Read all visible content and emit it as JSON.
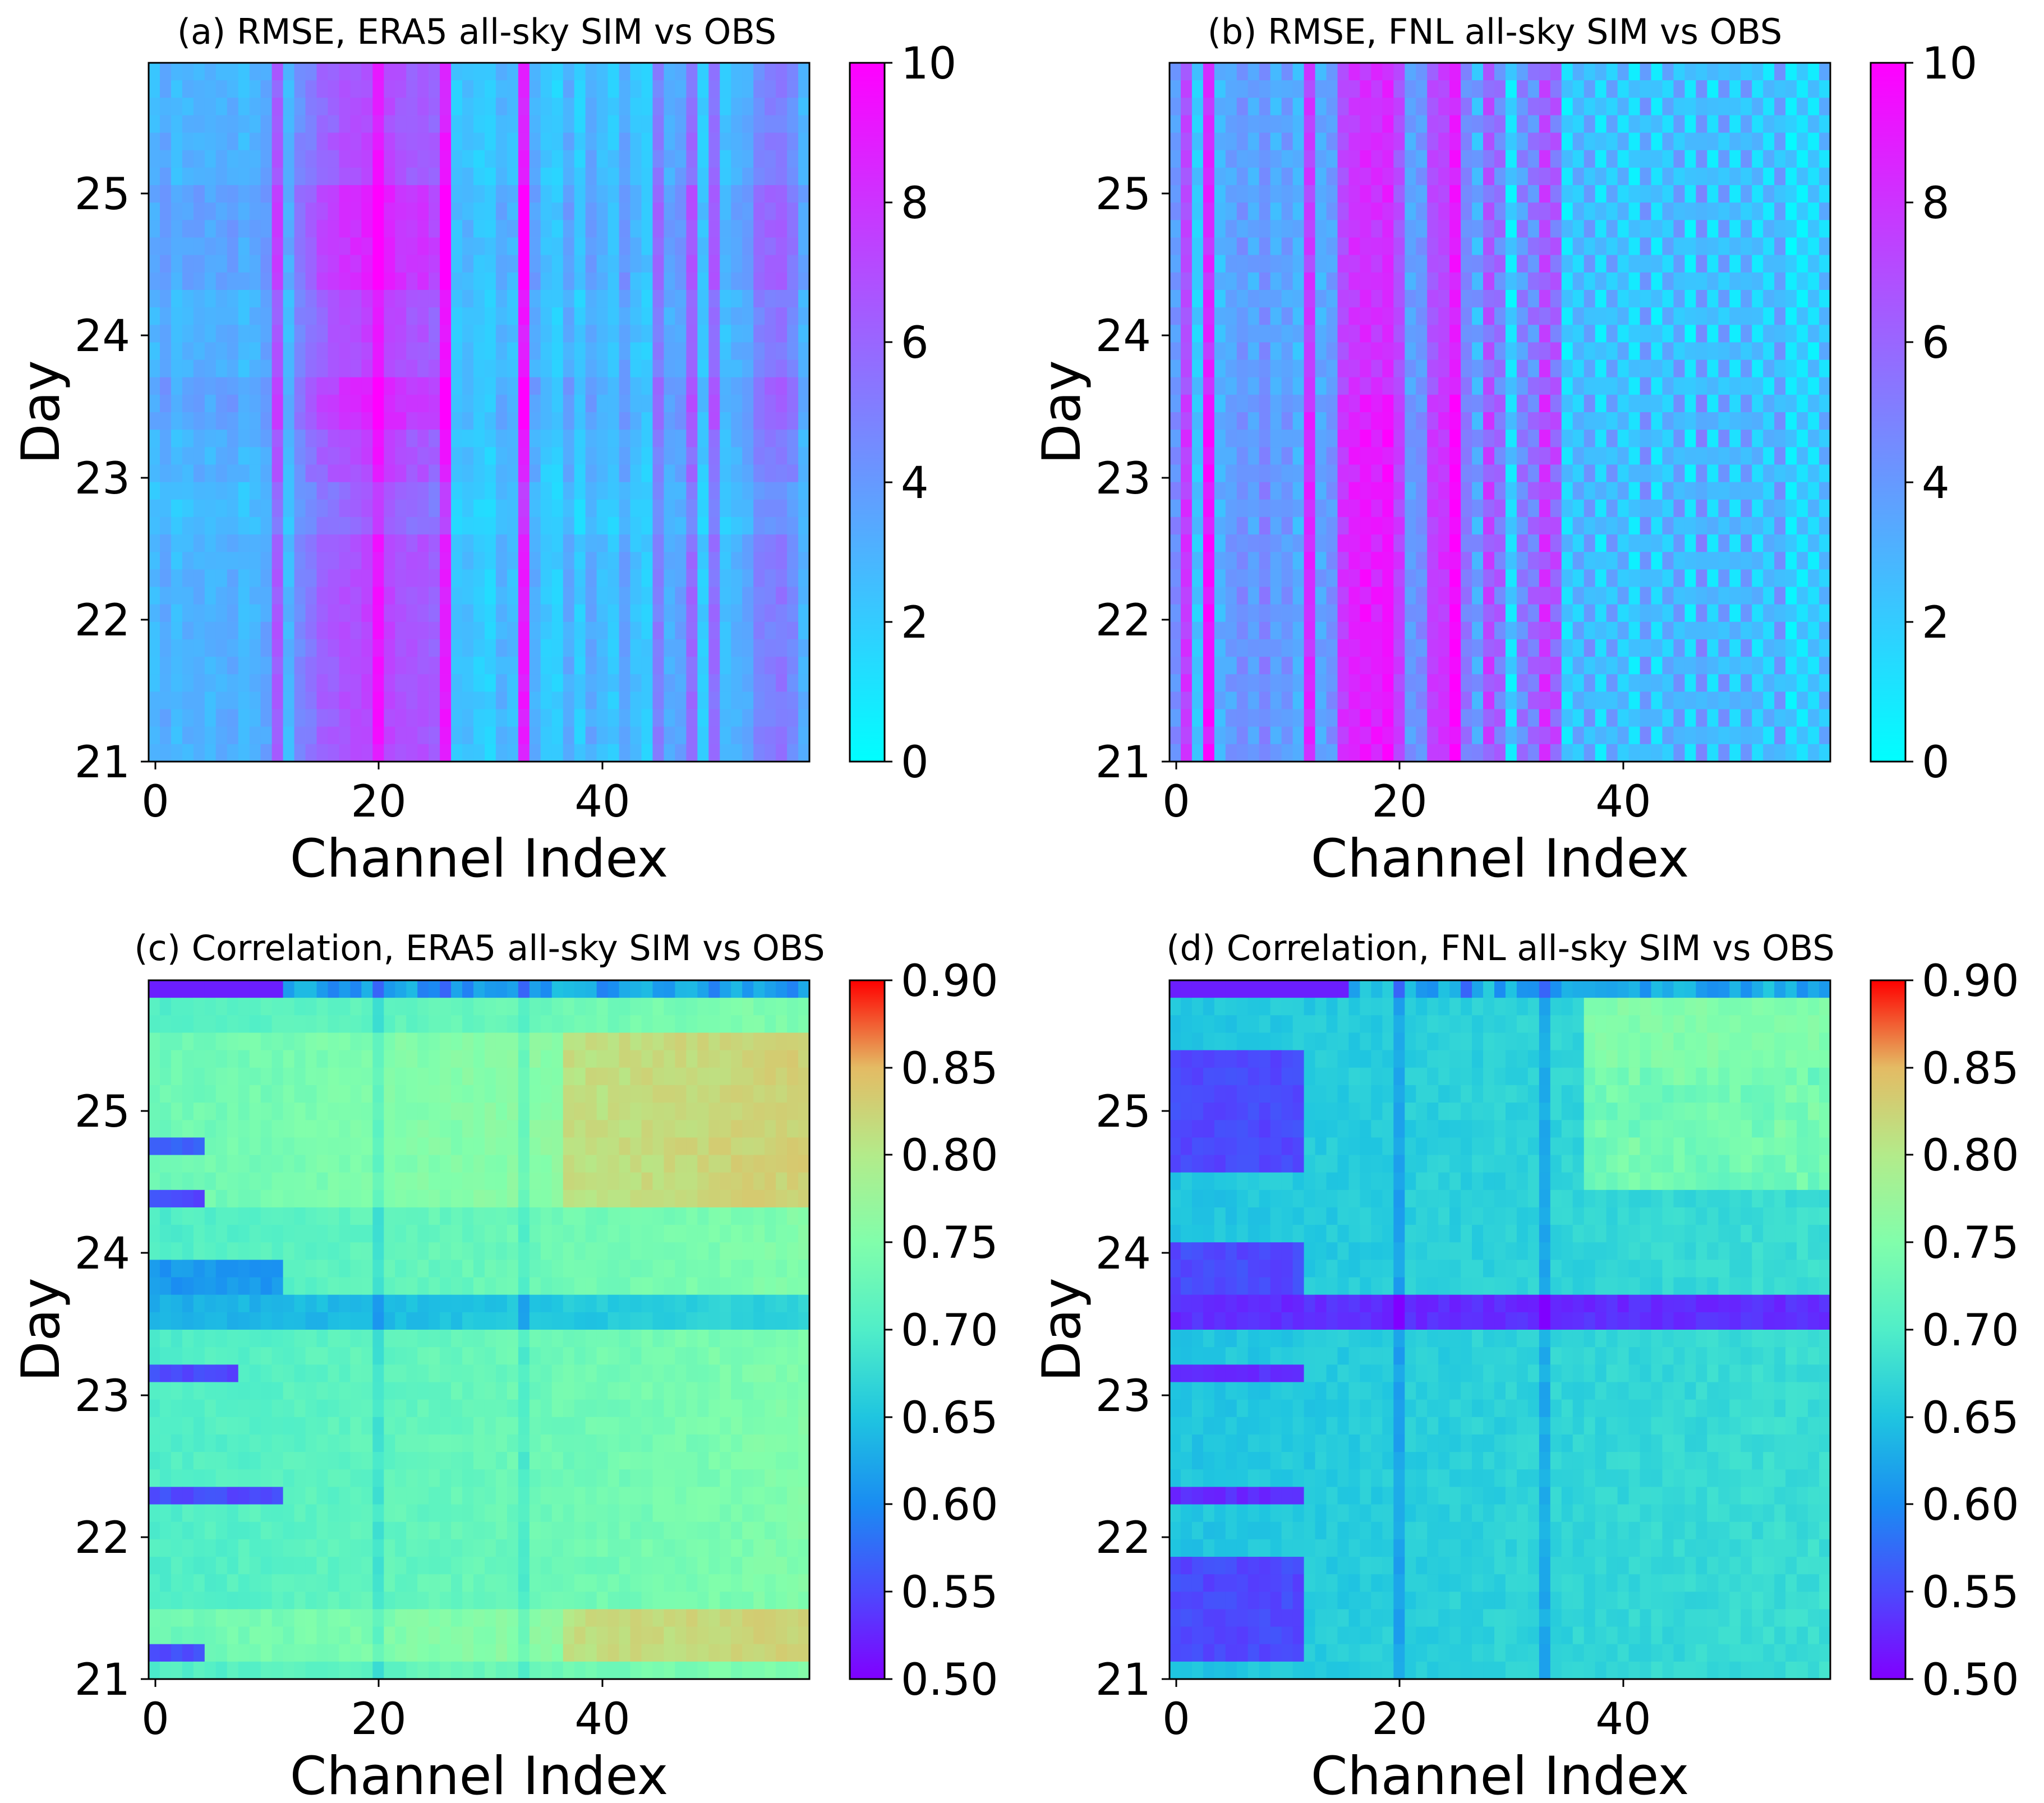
{
  "figure": {
    "description": "Four heatmaps of per-channel, per-day statistics of all-sky simulated vs observed brightness temperatures"
  },
  "chart_data": [
    {
      "type": "heatmap",
      "panel": "a",
      "title": "(a) RMSE, ERA5 all-sky SIM vs OBS",
      "xlabel": "Channel Index",
      "ylabel": "Day",
      "xlim": [
        -0.5,
        58.5
      ],
      "ylim": [
        21,
        25.92
      ],
      "xticks": [
        "0",
        "20",
        "40"
      ],
      "yticks": [
        "21",
        "22",
        "23",
        "24",
        "25"
      ],
      "n_channels": 59,
      "n_rows": 40,
      "colormap": "cool",
      "colorbar": {
        "range": [
          0,
          10
        ],
        "ticks": [
          "0",
          "2",
          "4",
          "6",
          "8",
          "10"
        ]
      },
      "channel_profile": [
        2.8,
        3.4,
        2.6,
        3.0,
        3.2,
        2.9,
        3.1,
        3.3,
        2.7,
        3.0,
        3.5,
        6.5,
        2.8,
        4.6,
        5.3,
        6.1,
        6.4,
        6.8,
        7.0,
        7.4,
        9.2,
        7.3,
        6.9,
        6.5,
        6.7,
        6.2,
        9.0,
        2.2,
        2.5,
        2.0,
        1.8,
        3.0,
        2.6,
        9.0,
        3.2,
        2.1,
        1.9,
        3.3,
        2.0,
        3.4,
        2.6,
        2.2,
        3.6,
        2.4,
        2.0,
        5.1,
        3.2,
        3.6,
        5.8,
        2.1,
        5.6,
        2.4,
        3.0,
        3.4,
        4.8,
        5.0,
        5.3,
        4.6,
        3.0
      ],
      "day_modulation": "banded; higher values on days ~23.3-23.7 and ~24.3-25.0, lower near day 22.6-22.9"
    },
    {
      "type": "heatmap",
      "panel": "b",
      "title": "(b) RMSE, FNL all-sky SIM vs OBS",
      "xlabel": "Channel Index",
      "ylabel": "Day",
      "xlim": [
        -0.5,
        58.5
      ],
      "ylim": [
        21,
        25.92
      ],
      "xticks": [
        "0",
        "20",
        "40"
      ],
      "yticks": [
        "21",
        "22",
        "23",
        "24",
        "25"
      ],
      "n_channels": 59,
      "n_rows": 40,
      "colormap": "cool",
      "colorbar": {
        "range": [
          0,
          10
        ],
        "ticks": [
          "0",
          "2",
          "4",
          "6",
          "8",
          "10"
        ]
      },
      "channel_profile": [
        4.2,
        7.4,
        2.2,
        8.8,
        2.9,
        3.6,
        4.2,
        3.5,
        4.5,
        3.3,
        3.9,
        3.0,
        8.0,
        3.4,
        4.0,
        7.5,
        8.3,
        8.6,
        8.4,
        8.9,
        7.2,
        3.8,
        4.2,
        7.2,
        7.6,
        9.3,
        5.0,
        3.4,
        6.5,
        5.4,
        1.6,
        4.7,
        5.1,
        7.2,
        6.2,
        1.8,
        2.6,
        3.2,
        1.8,
        3.0,
        2.4,
        1.6,
        3.4,
        1.8,
        2.6,
        3.3,
        1.6,
        3.7,
        2.0,
        3.2,
        1.9,
        3.3,
        2.0,
        2.2,
        3.4,
        1.4,
        1.6,
        1.8,
        2.4
      ],
      "day_modulation": "strong day-to-day checkerboard; step change near day 23.6"
    },
    {
      "type": "heatmap",
      "panel": "c",
      "title": "(c) Correlation, ERA5 all-sky SIM vs OBS",
      "xlabel": "Channel Index",
      "ylabel": "Day",
      "xlim": [
        -0.5,
        58.5
      ],
      "ylim": [
        21,
        25.92
      ],
      "xticks": [
        "0",
        "20",
        "40"
      ],
      "yticks": [
        "21",
        "22",
        "23",
        "24",
        "25"
      ],
      "n_channels": 59,
      "n_rows": 40,
      "colormap": "rainbow",
      "colorbar": {
        "range": [
          0.5,
          0.9
        ],
        "ticks": [
          "0.50",
          "0.55",
          "0.60",
          "0.65",
          "0.70",
          "0.75",
          "0.80",
          "0.85",
          "0.90"
        ]
      },
      "top_row_values": "0.52 for channels 0-11, 0.58-0.66 for channels 12-58 with dips at channels 20, 26, 33",
      "low_rows": [
        "21.15 (0.55 ch 0-4)",
        "22.25 (0.55 ch 0-11)",
        "23.10 (0.55 ch 0-7)",
        "23.40-23.60 (0.60-0.62)",
        "24.35 (0.55 ch 0-4)",
        "24.70 (0.57 ch 0-4)"
      ],
      "high_region": "0.78-0.83 for channels 40-58 on days 21.2-21.5 and 24.3-25.6"
    },
    {
      "type": "heatmap",
      "panel": "d",
      "title": "(d) Correlation, FNL all-sky SIM vs OBS",
      "xlabel": "Channel Index",
      "ylabel": "Day",
      "xlim": [
        -0.5,
        58.5
      ],
      "ylim": [
        21,
        25.92
      ],
      "xticks": [
        "0",
        "20",
        "40"
      ],
      "yticks": [
        "21",
        "22",
        "23",
        "24",
        "25"
      ],
      "n_channels": 59,
      "n_rows": 40,
      "colormap": "rainbow",
      "colorbar": {
        "range": [
          0.5,
          0.9
        ],
        "ticks": [
          "0.50",
          "0.55",
          "0.60",
          "0.65",
          "0.70",
          "0.75",
          "0.80",
          "0.85",
          "0.90"
        ]
      },
      "top_row_values": "0.52 for channels 0-15, 0.60-0.66 for channels 16-58 with dips at channels 20, 26, 33",
      "low_rows": [
        "23.55-23.65 (0.53 all channels)",
        "21.1-21.9 (0.53-0.56 ch 0-11)",
        "22.25 (0.53 ch 0-11)",
        "23.10 (0.53 ch 0-11)"
      ],
      "high_region": "0.72-0.76 for channels 40-58 on days 24.5-25.6"
    }
  ]
}
